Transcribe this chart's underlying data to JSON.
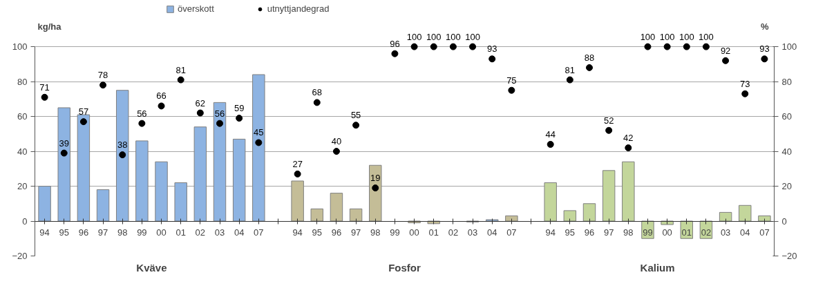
{
  "chart_data": {
    "type": "bar",
    "categories": [
      "94",
      "95",
      "96",
      "97",
      "98",
      "99",
      "00",
      "01",
      "02",
      "03",
      "04",
      "07",
      null,
      "94",
      "95",
      "96",
      "97",
      "98",
      "99",
      "00",
      "01",
      "02",
      "03",
      "04",
      "07",
      null,
      "94",
      "95",
      "96",
      "97",
      "98",
      "99",
      "00",
      "01",
      "02",
      "03",
      "04",
      "07"
    ],
    "series": [
      {
        "name": "överskott",
        "color": "#8db3e2",
        "colors": [
          "#8db3e2",
          "#8db3e2",
          "#8db3e2",
          "#8db3e2",
          "#8db3e2",
          "#8db3e2",
          "#8db3e2",
          "#8db3e2",
          "#8db3e2",
          "#8db3e2",
          "#8db3e2",
          "#8db3e2",
          "#ffffff",
          "#c4bd97",
          "#c4bd97",
          "#c4bd97",
          "#c4bd97",
          "#c4bd97",
          "#c4bd97",
          "#c4bd97",
          "#c4bd97",
          "#c4bd97",
          "#c4bd97",
          "#8db3e2",
          "#c4bd97",
          "#ffffff",
          "#c3d69b",
          "#c3d69b",
          "#c3d69b",
          "#c3d69b",
          "#c3d69b",
          "#c3d69b",
          "#c3d69b",
          "#c3d69b",
          "#c3d69b",
          "#c3d69b",
          "#c3d69b",
          "#c3d69b"
        ],
        "values": [
          20,
          65,
          61,
          18,
          75,
          46,
          34,
          22,
          54,
          68,
          47,
          84,
          null,
          23,
          7,
          16,
          7,
          32,
          null,
          -1,
          -1.5,
          null,
          -0.5,
          0.8,
          3,
          null,
          22,
          6,
          10,
          29,
          34,
          -10,
          -2,
          -10,
          -10,
          5,
          9,
          3
        ]
      },
      {
        "name": "utnyttjandegrad",
        "type": "scatter",
        "axis": "y2",
        "color": "#000000",
        "values": [
          71,
          39,
          57,
          78,
          38,
          56,
          66,
          81,
          62,
          56,
          59,
          45,
          null,
          27,
          68,
          40,
          55,
          19,
          96,
          100,
          100,
          100,
          100,
          93,
          75,
          null,
          44,
          81,
          88,
          52,
          42,
          100,
          100,
          100,
          100,
          92,
          73,
          93
        ],
        "value_labels": [
          "71",
          "39",
          "57",
          "78",
          "38",
          "56",
          "66",
          "81",
          "62",
          "56",
          "59",
          "45",
          null,
          "27",
          "68",
          "40",
          "55",
          "19",
          "96",
          "100",
          "100",
          "100",
          "100",
          "93",
          "75",
          null,
          "44",
          "81",
          "88",
          "52",
          "42",
          "100",
          "100",
          "100",
          "100",
          "92",
          "73",
          "93"
        ]
      }
    ],
    "ylabel": "kg/ha",
    "y2label": "%",
    "ylim": [
      -20,
      100
    ],
    "yticks": [
      -20,
      0,
      20,
      40,
      60,
      80,
      100
    ],
    "y2lim": [
      -20,
      100
    ],
    "y2ticks": [
      -20,
      0,
      20,
      40,
      60,
      80,
      100
    ],
    "annotations": [
      "Kväve",
      "Fosfor",
      "Kalium"
    ],
    "grid": "y",
    "legend": "top",
    "marker": "circle"
  }
}
